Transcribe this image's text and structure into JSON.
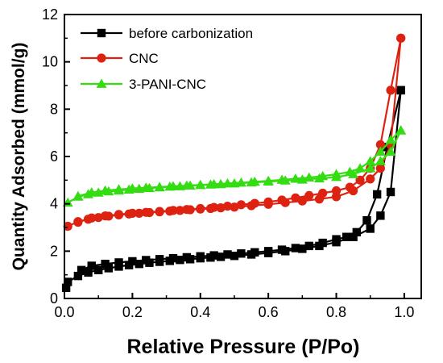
{
  "chart_data": {
    "type": "line",
    "title": "",
    "xlabel": "Relative Pressure (P/Po)",
    "ylabel": "Quantity Adsorbed (mmol/g)",
    "xlim": [
      0.0,
      1.05
    ],
    "ylim": [
      0,
      12
    ],
    "xticks": [
      0.0,
      0.2,
      0.4,
      0.6,
      0.8,
      1.0
    ],
    "xtick_labels": [
      "0.0",
      "0.2",
      "0.4",
      "0.6",
      "0.8",
      "1.0"
    ],
    "yticks": [
      0,
      2,
      4,
      6,
      8,
      10,
      12
    ],
    "ytick_labels": [
      "0",
      "2",
      "4",
      "6",
      "8",
      "10",
      "12"
    ],
    "grid": false,
    "legend_position": "top-left",
    "series": [
      {
        "name": "before carbonization",
        "color": "#000000",
        "marker": "square",
        "adsorption": {
          "x": [
            0.005,
            0.01,
            0.04,
            0.07,
            0.1,
            0.13,
            0.16,
            0.19,
            0.22,
            0.25,
            0.28,
            0.31,
            0.34,
            0.37,
            0.4,
            0.43,
            0.46,
            0.5,
            0.55,
            0.6,
            0.65,
            0.7,
            0.75,
            0.8,
            0.85,
            0.9,
            0.93,
            0.96,
            0.99
          ],
          "y": [
            0.45,
            0.7,
            0.95,
            1.1,
            1.2,
            1.28,
            1.35,
            1.41,
            1.46,
            1.51,
            1.55,
            1.59,
            1.63,
            1.66,
            1.7,
            1.73,
            1.76,
            1.8,
            1.86,
            1.92,
            2.0,
            2.1,
            2.22,
            2.38,
            2.6,
            2.95,
            3.5,
            4.5,
            8.8
          ]
        },
        "desorption": {
          "x": [
            0.99,
            0.95,
            0.92,
            0.89,
            0.86,
            0.83,
            0.8,
            0.76,
            0.72,
            0.68,
            0.64,
            0.6,
            0.56,
            0.52,
            0.48,
            0.44,
            0.4,
            0.36,
            0.32,
            0.28,
            0.24,
            0.2,
            0.16,
            0.12,
            0.08,
            0.05
          ],
          "y": [
            8.8,
            6.4,
            4.4,
            3.3,
            2.8,
            2.6,
            2.5,
            2.35,
            2.22,
            2.13,
            2.06,
            2.0,
            1.95,
            1.9,
            1.86,
            1.82,
            1.78,
            1.74,
            1.7,
            1.66,
            1.62,
            1.57,
            1.52,
            1.46,
            1.38,
            1.2
          ]
        }
      },
      {
        "name": "CNC",
        "color": "#dd2211",
        "marker": "circle",
        "adsorption": {
          "x": [
            0.01,
            0.04,
            0.07,
            0.1,
            0.13,
            0.16,
            0.19,
            0.22,
            0.25,
            0.28,
            0.31,
            0.34,
            0.37,
            0.4,
            0.43,
            0.46,
            0.5,
            0.55,
            0.6,
            0.65,
            0.7,
            0.75,
            0.8,
            0.85,
            0.9,
            0.93,
            0.96,
            0.99
          ],
          "y": [
            3.05,
            3.25,
            3.35,
            3.42,
            3.48,
            3.53,
            3.57,
            3.6,
            3.63,
            3.66,
            3.69,
            3.72,
            3.75,
            3.78,
            3.8,
            3.83,
            3.86,
            3.92,
            3.98,
            4.05,
            4.12,
            4.2,
            4.3,
            4.55,
            5.05,
            5.5,
            6.5,
            11.0
          ]
        },
        "desorption": {
          "x": [
            0.99,
            0.96,
            0.93,
            0.9,
            0.87,
            0.84,
            0.8,
            0.76,
            0.72,
            0.68,
            0.64,
            0.6,
            0.56,
            0.52,
            0.48,
            0.44,
            0.4,
            0.36,
            0.32,
            0.28,
            0.24,
            0.2,
            0.16,
            0.12,
            0.08,
            0.04
          ],
          "y": [
            11.0,
            8.8,
            6.5,
            5.5,
            5.0,
            4.7,
            4.55,
            4.45,
            4.35,
            4.25,
            4.16,
            4.08,
            4.02,
            3.96,
            3.9,
            3.85,
            3.8,
            3.76,
            3.72,
            3.68,
            3.64,
            3.6,
            3.55,
            3.49,
            3.4,
            3.22
          ]
        }
      },
      {
        "name": "3-PANI-CNC",
        "color": "#33dd11",
        "marker": "triangle",
        "adsorption": {
          "x": [
            0.01,
            0.04,
            0.07,
            0.1,
            0.13,
            0.16,
            0.19,
            0.22,
            0.25,
            0.28,
            0.31,
            0.34,
            0.37,
            0.4,
            0.43,
            0.46,
            0.5,
            0.55,
            0.6,
            0.65,
            0.7,
            0.75,
            0.8,
            0.85,
            0.9,
            0.93,
            0.96,
            0.99
          ],
          "y": [
            4.05,
            4.3,
            4.4,
            4.47,
            4.52,
            4.56,
            4.6,
            4.63,
            4.66,
            4.69,
            4.72,
            4.74,
            4.77,
            4.79,
            4.81,
            4.83,
            4.86,
            4.9,
            4.94,
            4.98,
            5.02,
            5.07,
            5.13,
            5.25,
            5.5,
            5.8,
            6.2,
            7.1
          ]
        },
        "desorption": {
          "x": [
            0.99,
            0.96,
            0.93,
            0.9,
            0.87,
            0.84,
            0.8,
            0.76,
            0.72,
            0.68,
            0.64,
            0.6,
            0.56,
            0.52,
            0.48,
            0.44,
            0.4,
            0.36,
            0.32,
            0.28,
            0.24,
            0.2,
            0.16,
            0.12,
            0.08,
            0.04
          ],
          "y": [
            7.1,
            6.7,
            6.2,
            5.8,
            5.5,
            5.35,
            5.25,
            5.17,
            5.11,
            5.06,
            5.01,
            4.97,
            4.93,
            4.89,
            4.86,
            4.83,
            4.8,
            4.77,
            4.74,
            4.71,
            4.68,
            4.65,
            4.61,
            4.56,
            4.48,
            4.32
          ]
        }
      }
    ]
  }
}
